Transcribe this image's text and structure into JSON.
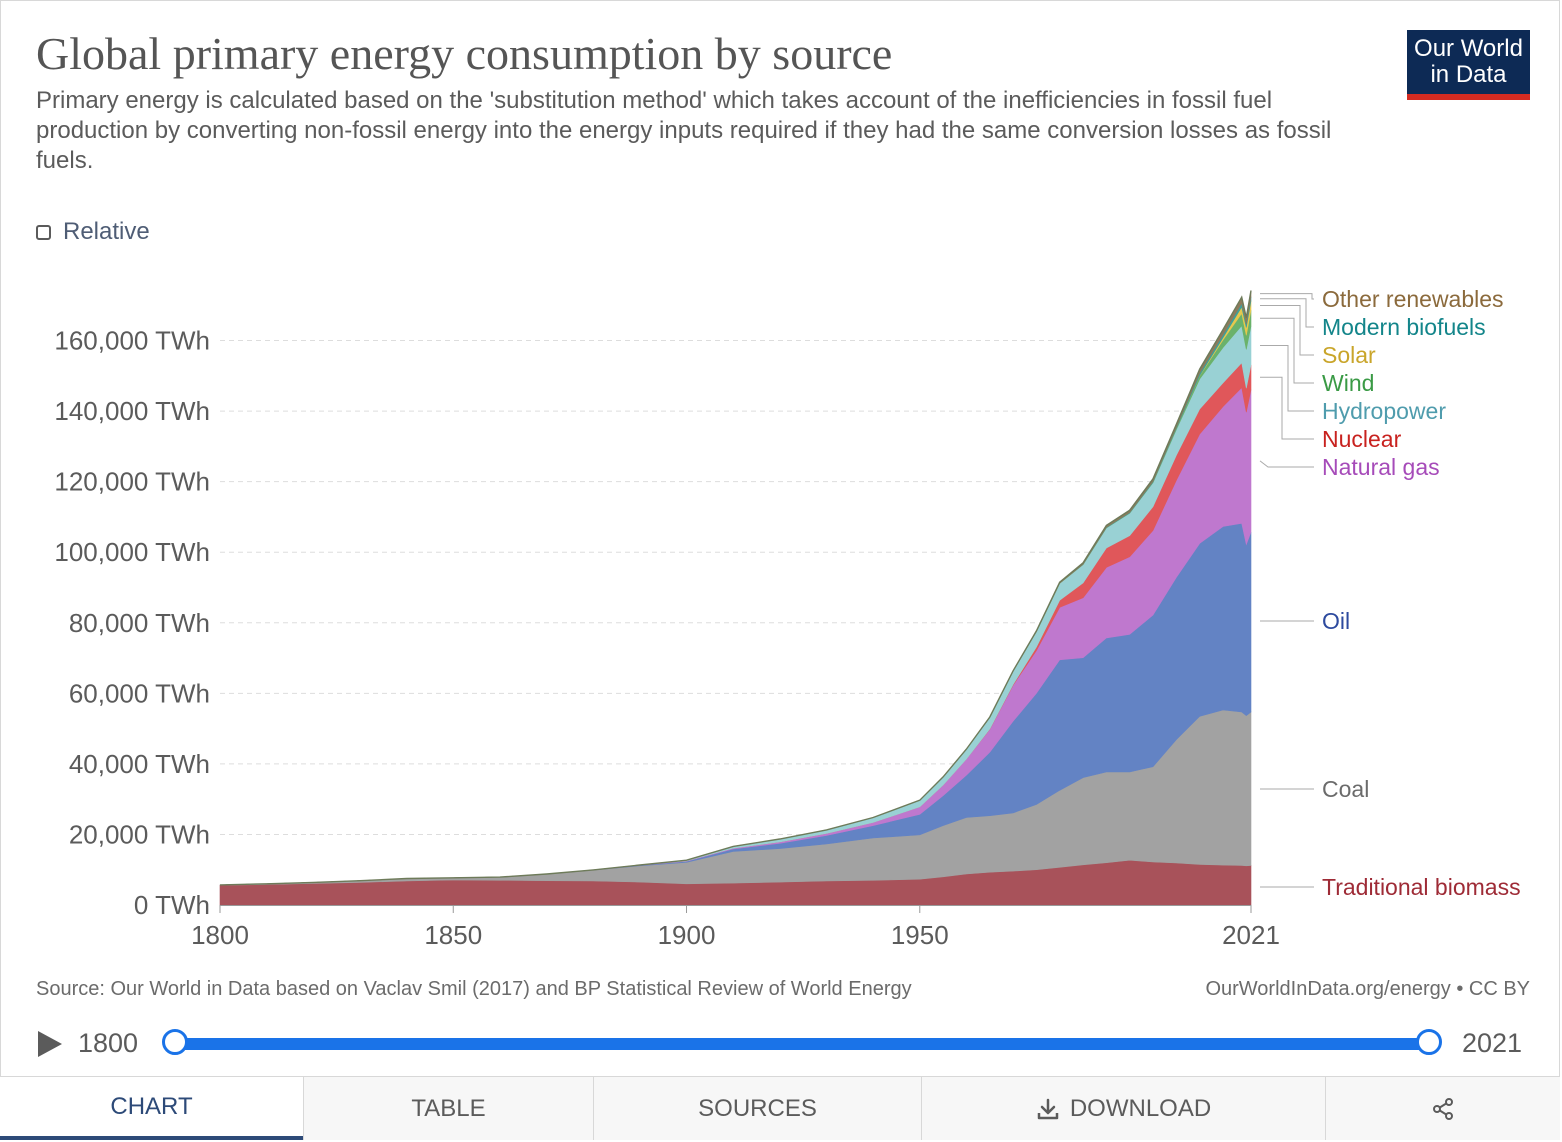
{
  "header": {
    "title": "Global primary energy consumption by source",
    "subtitle": "Primary energy is calculated based on the 'substitution method' which takes account of the inefficiencies in fossil fuel production by converting non-fossil energy into the energy inputs required if they had the same conversion losses as fossil fuels.",
    "logo_line1": "Our World",
    "logo_line2": "in Data"
  },
  "controls": {
    "relative_label": "Relative",
    "relative_checked": false
  },
  "chart_data": {
    "type": "area",
    "stacked": true,
    "title": "Global primary energy consumption by source",
    "xlabel": "",
    "ylabel": "",
    "xlim": [
      1800,
      2021
    ],
    "ylim": [
      0,
      180000
    ],
    "y_ticks": [
      0,
      20000,
      40000,
      60000,
      80000,
      100000,
      120000,
      140000,
      160000
    ],
    "y_tick_labels": [
      "0 TWh",
      "20,000 TWh",
      "40,000 TWh",
      "60,000 TWh",
      "80,000 TWh",
      "100,000 TWh",
      "120,000 TWh",
      "140,000 TWh",
      "160,000 TWh"
    ],
    "x_tick_labels": [
      "1800",
      "1850",
      "1900",
      "1950",
      "2021"
    ],
    "x_ticks": [
      1800,
      1850,
      1900,
      1950,
      2021
    ],
    "grid": "horizontal dashed",
    "legend": "right, labels at series ends",
    "x": [
      1800,
      1810,
      1820,
      1830,
      1840,
      1850,
      1860,
      1870,
      1880,
      1890,
      1900,
      1910,
      1920,
      1930,
      1940,
      1950,
      1955,
      1960,
      1965,
      1970,
      1975,
      1980,
      1985,
      1990,
      1995,
      2000,
      2005,
      2010,
      2015,
      2019,
      2020,
      2021
    ],
    "series": [
      {
        "name": "Traditional biomass",
        "color": "#a8525a",
        "values": [
          5600,
          5800,
          6100,
          6400,
          6800,
          7100,
          7000,
          6900,
          6800,
          6500,
          6000,
          6200,
          6500,
          6800,
          7000,
          7300,
          8000,
          8800,
          9300,
          9600,
          10000,
          10700,
          11400,
          12000,
          12700,
          12200,
          11900,
          11500,
          11300,
          11200,
          11100,
          11200
        ]
      },
      {
        "name": "Coal",
        "color": "#a2a2a2",
        "values": [
          100,
          200,
          300,
          500,
          700,
          600,
          900,
          1900,
          3100,
          4600,
          6100,
          9000,
          9500,
          10500,
          12000,
          12600,
          14500,
          16000,
          16000,
          16500,
          18500,
          21800,
          24700,
          25700,
          25000,
          27000,
          35000,
          42000,
          44000,
          43500,
          42600,
          43500
        ]
      },
      {
        "name": "Oil",
        "color": "#6383c4",
        "values": [
          0,
          0,
          0,
          0,
          0,
          0,
          0,
          0,
          50,
          150,
          300,
          700,
          1500,
          2400,
          3500,
          5800,
          8500,
          12000,
          18000,
          26000,
          31500,
          37000,
          34000,
          38000,
          39000,
          43000,
          46000,
          49000,
          52000,
          53500,
          48500,
          51000
        ]
      },
      {
        "name": "Natural gas",
        "color": "#bf78ce",
        "values": [
          0,
          0,
          0,
          0,
          0,
          0,
          0,
          0,
          0,
          50,
          100,
          200,
          400,
          600,
          900,
          2100,
          3000,
          4600,
          6500,
          10200,
          12100,
          14900,
          17000,
          20000,
          22000,
          24000,
          27500,
          31000,
          34000,
          38500,
          37500,
          40400
        ]
      },
      {
        "name": "Nuclear",
        "color": "#e0575a",
        "values": [
          0,
          0,
          0,
          0,
          0,
          0,
          0,
          0,
          0,
          0,
          0,
          0,
          0,
          0,
          0,
          0,
          0,
          0,
          100,
          200,
          1000,
          2000,
          4200,
          5500,
          6000,
          6700,
          7100,
          7100,
          6700,
          7000,
          6800,
          7000
        ]
      },
      {
        "name": "Hydropower",
        "color": "#99d1d4",
        "values": [
          0,
          0,
          0,
          0,
          0,
          0,
          0,
          0,
          0,
          50,
          200,
          500,
          800,
          1000,
          1400,
          1900,
          2300,
          2800,
          3300,
          3800,
          4400,
          4800,
          5200,
          5700,
          6400,
          6800,
          7300,
          8500,
          10000,
          10500,
          11000,
          11000
        ]
      },
      {
        "name": "Wind",
        "color": "#6ab26b",
        "values": [
          0,
          0,
          0,
          0,
          0,
          0,
          0,
          0,
          0,
          0,
          0,
          0,
          0,
          0,
          0,
          0,
          0,
          0,
          0,
          0,
          0,
          0,
          0,
          0,
          0,
          100,
          300,
          900,
          2200,
          3500,
          4000,
          4500
        ]
      },
      {
        "name": "Solar",
        "color": "#e6c84e",
        "values": [
          0,
          0,
          0,
          0,
          0,
          0,
          0,
          0,
          0,
          0,
          0,
          0,
          0,
          0,
          0,
          0,
          0,
          0,
          0,
          0,
          0,
          0,
          0,
          0,
          0,
          0,
          0,
          100,
          600,
          1800,
          2200,
          2700
        ]
      },
      {
        "name": "Modern biofuels",
        "color": "#3f9f99",
        "values": [
          0,
          0,
          0,
          0,
          0,
          0,
          0,
          0,
          0,
          0,
          0,
          0,
          0,
          0,
          0,
          0,
          0,
          0,
          0,
          0,
          0,
          0,
          100,
          200,
          200,
          300,
          400,
          700,
          900,
          1100,
          1000,
          1100
        ]
      },
      {
        "name": "Other renewables",
        "color": "#8e7a5c",
        "values": [
          0,
          0,
          0,
          0,
          0,
          0,
          0,
          0,
          0,
          0,
          0,
          0,
          0,
          0,
          0,
          0,
          0,
          0,
          100,
          100,
          200,
          300,
          400,
          500,
          600,
          700,
          800,
          1100,
          1400,
          1700,
          1750,
          1800
        ]
      }
    ]
  },
  "legend_colors": {
    "Traditional biomass": "#9e2b36",
    "Coal": "#6b6b6b",
    "Oil": "#2d4a9e",
    "Natural gas": "#a64bb9",
    "Nuclear": "#c8221f",
    "Hydropower": "#4f9cad",
    "Wind": "#3a9a45",
    "Solar": "#c9a52a",
    "Modern biofuels": "#13858a",
    "Other renewables": "#8b6a3c"
  },
  "footer": {
    "source": "Source: Our World in Data based on Vaclav Smil (2017) and BP Statistical Review of World Energy",
    "url": "OurWorldInData.org/energy • CC BY"
  },
  "timeline": {
    "start_year": "1800",
    "end_year": "2021"
  },
  "tabs": [
    {
      "id": "chart",
      "label": "CHART",
      "active": true
    },
    {
      "id": "table",
      "label": "TABLE",
      "active": false
    },
    {
      "id": "sources",
      "label": "SOURCES",
      "active": false
    },
    {
      "id": "download",
      "label": "DOWNLOAD",
      "active": false
    },
    {
      "id": "share",
      "label": "",
      "icon": "share-icon",
      "active": false
    }
  ]
}
